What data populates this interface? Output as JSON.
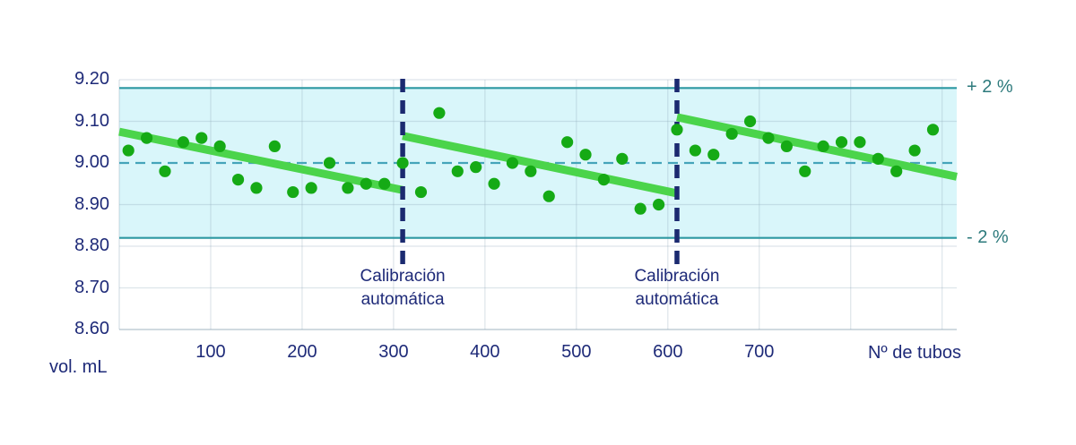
{
  "chart_data": {
    "type": "scatter",
    "title": "",
    "xlabel": "Nº de tubos",
    "ylabel": "vol. mL",
    "xlim": [
      0,
      916
    ],
    "ylim": [
      8.6,
      9.2
    ],
    "grid": true,
    "legend": false,
    "yticks": [
      {
        "value": 9.2,
        "label": "9.20"
      },
      {
        "value": 9.1,
        "label": "9.10"
      },
      {
        "value": 9.0,
        "label": "9.00"
      },
      {
        "value": 8.9,
        "label": "8.90"
      },
      {
        "value": 8.8,
        "label": "8.80"
      },
      {
        "value": 8.7,
        "label": "8.70"
      },
      {
        "value": 8.6,
        "label": "8.60"
      }
    ],
    "xticks": [
      {
        "value": 100,
        "label": "100"
      },
      {
        "value": 200,
        "label": "200"
      },
      {
        "value": 300,
        "label": "300"
      },
      {
        "value": 400,
        "label": "400"
      },
      {
        "value": 500,
        "label": "500"
      },
      {
        "value": 600,
        "label": "600"
      },
      {
        "value": 700,
        "label": "700"
      }
    ],
    "grid_x_unlabeled": [
      800,
      900
    ],
    "target_line": {
      "value": 9.0,
      "style": "dashed"
    },
    "upper_limit": {
      "value": 9.18,
      "label": "+ 2 %"
    },
    "lower_limit": {
      "value": 8.82,
      "label": "- 2 %"
    },
    "tolerance_band": {
      "from": 8.82,
      "to": 9.18
    },
    "calibration": {
      "line1": "Calibración",
      "line2": "automática",
      "events_x": [
        310,
        610
      ]
    },
    "points": [
      [
        10,
        9.03
      ],
      [
        30,
        9.06
      ],
      [
        50,
        8.98
      ],
      [
        70,
        9.05
      ],
      [
        90,
        9.06
      ],
      [
        110,
        9.04
      ],
      [
        130,
        8.96
      ],
      [
        150,
        8.94
      ],
      [
        170,
        9.04
      ],
      [
        190,
        8.93
      ],
      [
        210,
        8.94
      ],
      [
        230,
        9.0
      ],
      [
        250,
        8.94
      ],
      [
        270,
        8.95
      ],
      [
        290,
        8.95
      ],
      [
        310,
        9.0
      ],
      [
        330,
        8.93
      ],
      [
        350,
        9.12
      ],
      [
        370,
        8.98
      ],
      [
        390,
        8.99
      ],
      [
        410,
        8.95
      ],
      [
        430,
        9.0
      ],
      [
        450,
        8.98
      ],
      [
        470,
        8.92
      ],
      [
        490,
        9.05
      ],
      [
        510,
        9.02
      ],
      [
        530,
        8.96
      ],
      [
        550,
        9.01
      ],
      [
        570,
        8.89
      ],
      [
        590,
        8.9
      ],
      [
        610,
        9.08
      ],
      [
        630,
        9.03
      ],
      [
        650,
        9.02
      ],
      [
        670,
        9.07
      ],
      [
        690,
        9.1
      ],
      [
        710,
        9.06
      ],
      [
        730,
        9.04
      ],
      [
        750,
        8.98
      ],
      [
        770,
        9.04
      ],
      [
        790,
        9.05
      ],
      [
        810,
        9.05
      ],
      [
        830,
        9.01
      ],
      [
        850,
        8.98
      ],
      [
        870,
        9.03
      ],
      [
        890,
        9.08
      ]
    ],
    "trend_segments": [
      {
        "x1": 0,
        "v1": 9.075,
        "x2": 310,
        "v2": 8.935
      },
      {
        "x1": 310,
        "v1": 9.065,
        "x2": 610,
        "v2": 8.927
      },
      {
        "x1": 610,
        "v1": 9.11,
        "x2": 916,
        "v2": 8.967
      }
    ],
    "colors": {
      "band_fill": "#d9f6fa",
      "band_border": "#2d98a2",
      "target_dash": "#45a4ba",
      "trend_green": "#4bd44b",
      "point_green": "#15aa15",
      "calibration_navy": "#1b2a70",
      "axis_text_navy": "#1e2a78",
      "limit_text_teal": "#2d7a7c",
      "grid": "#8aa2b4"
    }
  }
}
